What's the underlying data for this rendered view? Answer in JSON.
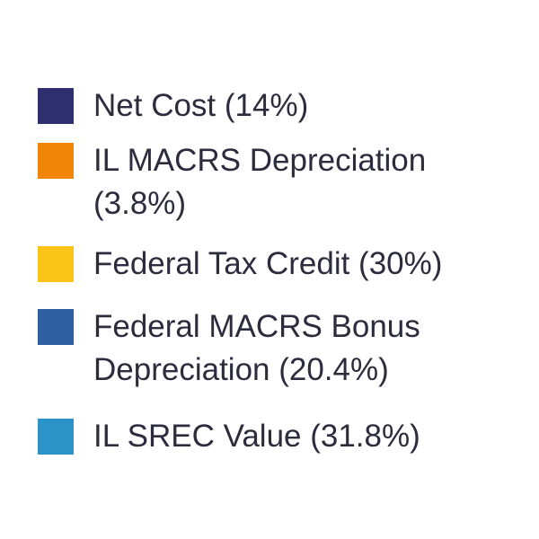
{
  "chart_data": {
    "type": "pie",
    "categories": [
      "Net Cost",
      "IL MACRS Depreciation",
      "Federal Tax Credit",
      "Federal MACRS Bonus Depreciation",
      "IL SREC Value"
    ],
    "values": [
      14,
      3.8,
      30,
      20.4,
      31.8
    ],
    "unit": "%",
    "legend": [
      {
        "lines": [
          "Net Cost (14%)"
        ],
        "color": "#2e2f6e"
      },
      {
        "lines": [
          "IL MACRS Depreciation",
          "(3.8%)"
        ],
        "color": "#f08508"
      },
      {
        "lines": [
          "Federal Tax Credit (30%)"
        ],
        "color": "#fcc419"
      },
      {
        "lines": [
          "Federal MACRS Bonus",
          "Depreciation (20.4%)"
        ],
        "color": "#2e5fa3"
      },
      {
        "lines": [
          "IL SREC Value (31.8%)"
        ],
        "color": "#2b93c8"
      }
    ]
  }
}
